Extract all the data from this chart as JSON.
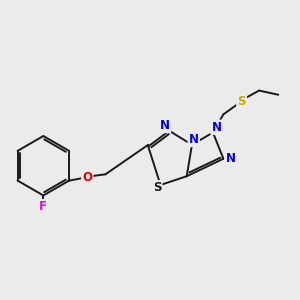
{
  "background_color": "#ebebeb",
  "bond_color": "#1a1a1a",
  "atom_colors": {
    "N": "#0000ee",
    "S_ring": "#1a1a1a",
    "S_chain": "#ccaa00",
    "O": "#ee0000",
    "F": "#ee00ee",
    "C": "#1a1a1a"
  },
  "figsize": [
    3.0,
    3.0
  ],
  "dpi": 100
}
